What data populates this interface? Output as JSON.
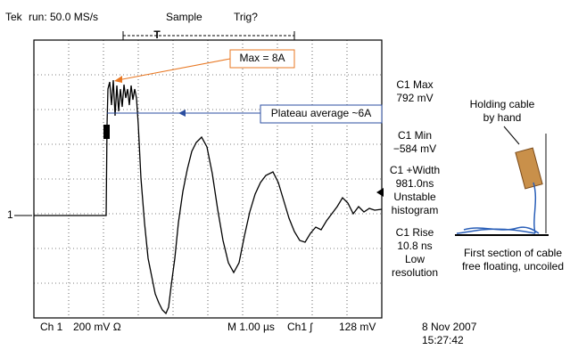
{
  "header": {
    "brand": "Tek",
    "run": "run: 50.0 MS/s",
    "mode": "Sample",
    "trigger": "Trig?",
    "trigger_marker": "T"
  },
  "channel_marker": "1",
  "annotations": {
    "max": "Max = 8A",
    "plateau": "Plateau average ~6A"
  },
  "measurements": [
    {
      "label": "C1 Max",
      "value": "792 mV"
    },
    {
      "label": "C1 Min",
      "value": "−584 mV"
    },
    {
      "label": "C1 +Width",
      "value": "981.0ns",
      "notes": [
        "Unstable",
        "histogram"
      ]
    },
    {
      "label": "C1 Rise",
      "value": "10.8 ns",
      "notes": [
        "Low",
        "resolution"
      ]
    }
  ],
  "status": {
    "channel": "Ch 1",
    "scale": "200 mV Ω",
    "timebase": "M 1.00 µs",
    "trigger_source": "Ch1 ʃ",
    "trigger_level": "128 mV",
    "date": "8 Nov 2007",
    "time": "15:27:42"
  },
  "photo": {
    "top_caption": [
      "Holding cable",
      "by hand"
    ],
    "bottom_caption": [
      "First section of cable",
      "free floating, uncoiled"
    ]
  }
}
